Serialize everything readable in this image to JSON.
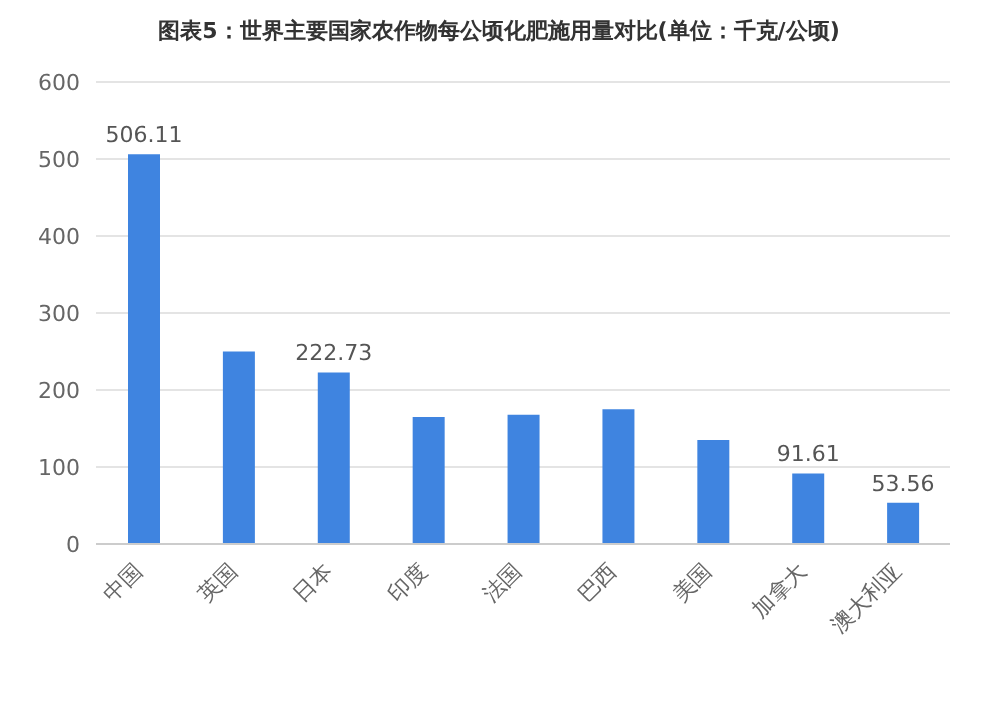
{
  "chart_data": {
    "type": "bar",
    "title": "图表5：世界主要国家农作物每公顷化肥施用量对比(单位：千克/公顷)",
    "categories": [
      "中国",
      "英国",
      "日本",
      "印度",
      "法国",
      "巴西",
      "美国",
      "加拿大",
      "澳大利亚"
    ],
    "values": [
      506.11,
      250,
      222.73,
      165,
      168,
      175,
      135,
      91.61,
      53.56
    ],
    "value_labels": [
      "506.11",
      null,
      "222.73",
      null,
      null,
      null,
      null,
      "91.61",
      "53.56"
    ],
    "color": "#3f84e0",
    "ylim": [
      0,
      600
    ],
    "yticks": [
      0,
      100,
      200,
      300,
      400,
      500,
      600
    ],
    "grid": "y"
  }
}
